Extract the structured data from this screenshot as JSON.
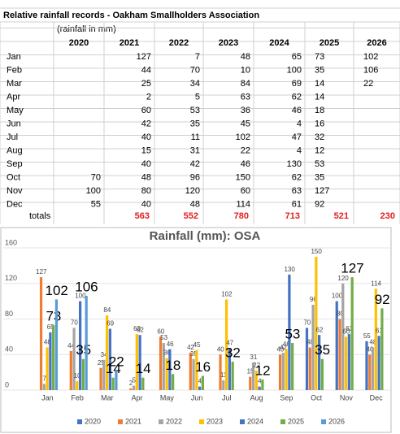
{
  "table": {
    "title": "Relative rainfall records - Oakham Smallholders Association",
    "unit_note": "(rainfall in mm)",
    "columns": [
      "2020",
      "2021",
      "2022",
      "2023",
      "2024",
      "2025",
      "2026"
    ],
    "rows": [
      {
        "month": "Jan",
        "values": [
          null,
          127,
          7,
          48,
          65,
          73,
          102
        ]
      },
      {
        "month": "Feb",
        "values": [
          null,
          44,
          70,
          10,
          100,
          35,
          106
        ]
      },
      {
        "month": "Mar",
        "values": [
          null,
          25,
          34,
          84,
          69,
          14,
          22
        ]
      },
      {
        "month": "Apr",
        "values": [
          null,
          2,
          5,
          63,
          62,
          14,
          null
        ]
      },
      {
        "month": "May",
        "values": [
          null,
          60,
          53,
          36,
          46,
          18,
          null
        ]
      },
      {
        "month": "Jun",
        "values": [
          null,
          42,
          35,
          45,
          4,
          16,
          null
        ]
      },
      {
        "month": "Jul",
        "values": [
          null,
          40,
          11,
          102,
          47,
          32,
          null
        ]
      },
      {
        "month": "Aug",
        "values": [
          null,
          15,
          31,
          22,
          4,
          12,
          null
        ]
      },
      {
        "month": "Sep",
        "values": [
          null,
          40,
          42,
          46,
          130,
          53,
          null
        ]
      },
      {
        "month": "Oct",
        "values": [
          70,
          48,
          96,
          150,
          62,
          35,
          null
        ]
      },
      {
        "month": "Nov",
        "values": [
          100,
          80,
          120,
          60,
          63,
          127,
          null
        ]
      },
      {
        "month": "Dec",
        "values": [
          55,
          40,
          48,
          114,
          61,
          92,
          null
        ]
      }
    ],
    "totals_label": "totals",
    "totals": [
      null,
      563,
      552,
      780,
      713,
      521,
      230
    ]
  },
  "chart_data": {
    "type": "bar",
    "title": "Rainfall (mm): OSA",
    "categories": [
      "Jan",
      "Feb",
      "Mar",
      "Apr",
      "May",
      "Jun",
      "Jul",
      "Aug",
      "Sep",
      "Oct",
      "Nov",
      "Dec"
    ],
    "series": [
      {
        "name": "2020",
        "color": "#4472c4",
        "values": [
          null,
          null,
          null,
          null,
          null,
          null,
          null,
          null,
          null,
          70,
          100,
          55
        ]
      },
      {
        "name": "2021",
        "color": "#ed7d31",
        "values": [
          127,
          44,
          25,
          2,
          60,
          42,
          40,
          15,
          40,
          48,
          80,
          40
        ]
      },
      {
        "name": "2022",
        "color": "#a5a5a5",
        "values": [
          7,
          70,
          34,
          5,
          53,
          35,
          11,
          31,
          42,
          96,
          120,
          48
        ]
      },
      {
        "name": "2023",
        "color": "#ffc000",
        "values": [
          48,
          10,
          84,
          63,
          36,
          45,
          102,
          22,
          46,
          150,
          60,
          114
        ]
      },
      {
        "name": "2024",
        "color": "#4472c4",
        "values": [
          65,
          100,
          69,
          62,
          46,
          4,
          47,
          4,
          130,
          62,
          63,
          61
        ]
      },
      {
        "name": "2025",
        "color": "#70ad47",
        "values": [
          73,
          35,
          14,
          14,
          18,
          16,
          32,
          12,
          53,
          35,
          127,
          92
        ]
      },
      {
        "name": "2026",
        "color": "#5b9bd5",
        "values": [
          102,
          106,
          22,
          null,
          null,
          null,
          null,
          null,
          null,
          null,
          null,
          null
        ]
      }
    ],
    "ylim": [
      0,
      160
    ],
    "yticks": [
      0,
      40,
      80,
      120,
      160
    ],
    "grid": true,
    "legend": "bottom"
  }
}
